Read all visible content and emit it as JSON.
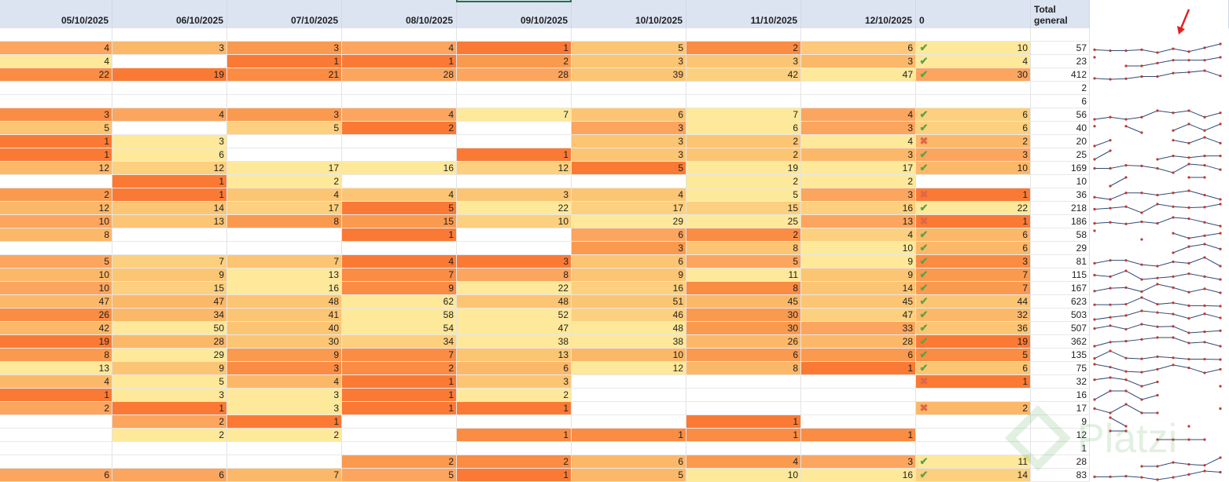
{
  "headers": [
    "05/10/2025",
    "06/10/2025",
    "07/10/2025",
    "08/10/2025",
    "09/10/2025",
    "10/10/2025",
    "11/10/2025",
    "12/10/2025",
    "0",
    "Total general"
  ],
  "rows": [
    [
      "",
      "",
      "",
      "",
      "",
      "",
      "",
      "",
      "",
      "",
      ""
    ],
    [
      "4",
      "3",
      "3",
      "4",
      "1",
      "5",
      "2",
      "6",
      "ok",
      "10",
      "57"
    ],
    [
      "4",
      "",
      "1",
      "1",
      "2",
      "3",
      "3",
      "3",
      "ok",
      "4",
      "23"
    ],
    [
      "22",
      "19",
      "21",
      "28",
      "28",
      "39",
      "42",
      "47",
      "ok",
      "30",
      "412"
    ],
    [
      "",
      "",
      "",
      "",
      "",
      "",
      "",
      "",
      "",
      "",
      "2"
    ],
    [
      "",
      "",
      "",
      "",
      "",
      "",
      "",
      "",
      "",
      "",
      "6"
    ],
    [
      "3",
      "4",
      "3",
      "4",
      "7",
      "6",
      "7",
      "4",
      "ok",
      "6",
      "56"
    ],
    [
      "5",
      "",
      "5",
      "2",
      "",
      "3",
      "6",
      "3",
      "ok",
      "6",
      "40"
    ],
    [
      "1",
      "3",
      "",
      "",
      "",
      "3",
      "2",
      "4",
      "bad",
      "2",
      "20"
    ],
    [
      "1",
      "6",
      "",
      "",
      "1",
      "3",
      "2",
      "3",
      "ok",
      "3",
      "25"
    ],
    [
      "12",
      "12",
      "17",
      "16",
      "12",
      "5",
      "19",
      "17",
      "ok",
      "10",
      "169"
    ],
    [
      "",
      "1",
      "2",
      "",
      "",
      "",
      "2",
      "2",
      "",
      "",
      "10"
    ],
    [
      "2",
      "1",
      "4",
      "4",
      "3",
      "4",
      "5",
      "3",
      "bad",
      "1",
      "36"
    ],
    [
      "12",
      "14",
      "17",
      "5",
      "22",
      "17",
      "15",
      "16",
      "ok",
      "22",
      "218"
    ],
    [
      "10",
      "13",
      "8",
      "15",
      "10",
      "29",
      "25",
      "13",
      "bad",
      "1",
      "186"
    ],
    [
      "8",
      "",
      "",
      "1",
      "",
      "6",
      "2",
      "4",
      "ok",
      "6",
      "58"
    ],
    [
      "",
      "",
      "",
      "",
      "",
      "3",
      "8",
      "10",
      "ok",
      "6",
      "29"
    ],
    [
      "5",
      "7",
      "7",
      "4",
      "3",
      "6",
      "5",
      "9",
      "ok",
      "3",
      "81"
    ],
    [
      "10",
      "9",
      "13",
      "7",
      "8",
      "9",
      "11",
      "9",
      "ok",
      "7",
      "115"
    ],
    [
      "10",
      "15",
      "16",
      "9",
      "22",
      "16",
      "8",
      "14",
      "ok",
      "7",
      "167"
    ],
    [
      "47",
      "47",
      "48",
      "62",
      "48",
      "51",
      "45",
      "45",
      "ok",
      "44",
      "623"
    ],
    [
      "26",
      "34",
      "41",
      "58",
      "52",
      "46",
      "30",
      "47",
      "ok",
      "32",
      "503"
    ],
    [
      "42",
      "50",
      "40",
      "54",
      "47",
      "48",
      "30",
      "33",
      "ok",
      "36",
      "507"
    ],
    [
      "19",
      "28",
      "30",
      "34",
      "38",
      "38",
      "26",
      "28",
      "ok",
      "19",
      "362"
    ],
    [
      "8",
      "29",
      "9",
      "7",
      "13",
      "10",
      "6",
      "6",
      "ok",
      "5",
      "135"
    ],
    [
      "13",
      "9",
      "3",
      "2",
      "6",
      "12",
      "8",
      "1",
      "ok",
      "6",
      "75"
    ],
    [
      "4",
      "5",
      "4",
      "1",
      "3",
      "",
      "",
      "",
      "bad",
      "1",
      "32"
    ],
    [
      "1",
      "3",
      "3",
      "1",
      "2",
      "",
      "",
      "",
      "",
      "",
      "16"
    ],
    [
      "2",
      "1",
      "3",
      "1",
      "1",
      "",
      "",
      "",
      "bad",
      "2",
      "17"
    ],
    [
      "",
      "2",
      "1",
      "",
      "",
      "",
      "1",
      "",
      "",
      "",
      "9"
    ],
    [
      "",
      "2",
      "2",
      "",
      "1",
      "1",
      "1",
      "1",
      "",
      "",
      "12"
    ],
    [
      "",
      "",
      "",
      "",
      "",
      "",
      "",
      "",
      "",
      "",
      "1"
    ],
    [
      "",
      "",
      "",
      "2",
      "2",
      "6",
      "4",
      "3",
      "ok",
      "11",
      "28"
    ],
    [
      "6",
      "6",
      "7",
      "5",
      "1",
      "5",
      "10",
      "16",
      "ok",
      "14",
      "83"
    ]
  ],
  "fills": [
    [
      "w",
      "w",
      "w",
      "w",
      "w",
      "w",
      "w",
      "w",
      "w"
    ],
    [
      "#fba55f",
      "#fcb869",
      "#fa9a4f",
      "#fba55f",
      "#fa7a35",
      "#fcc574",
      "#fa8c43",
      "#fdc879",
      "#fee89a"
    ],
    [
      "#fee89a",
      "#ffffff",
      "#fa7a35",
      "#fa7a35",
      "#fa9a4f",
      "#fcc574",
      "#fcc574",
      "#fcb869",
      "#fee89a"
    ],
    [
      "#fa8c43",
      "#fa7a35",
      "#fa8c43",
      "#fba55f",
      "#fba55f",
      "#fcc574",
      "#fcd07e",
      "#fee89a",
      "#fba55f"
    ],
    [
      "w",
      "w",
      "w",
      "w",
      "w",
      "w",
      "w",
      "w",
      "w"
    ],
    [
      "w",
      "w",
      "w",
      "w",
      "w",
      "w",
      "w",
      "w",
      "w"
    ],
    [
      "#fa8c43",
      "#fba55f",
      "#fa9a4f",
      "#fba55f",
      "#fee89a",
      "#fcc574",
      "#fee89a",
      "#fba55f",
      "#fcd07e"
    ],
    [
      "#fcc574",
      "#ffffff",
      "#fcd07e",
      "#fa7a35",
      "#ffffff",
      "#fba55f",
      "#fee89a",
      "#fba55f",
      "#fcd07e"
    ],
    [
      "#fa7a35",
      "#fee89a",
      "#ffffff",
      "#ffffff",
      "#ffffff",
      "#fcc574",
      "#fcc574",
      "#fee89a",
      "#fcb869"
    ],
    [
      "#fa7a35",
      "#fee89a",
      "#ffffff",
      "#ffffff",
      "#fa7a35",
      "#fcc574",
      "#fcc574",
      "#fcb869",
      "#fba55f"
    ],
    [
      "#fcb869",
      "#fcd07e",
      "#fee89a",
      "#fee89a",
      "#fcd07e",
      "#fa7a35",
      "#fee89a",
      "#fee89a",
      "#fcb869"
    ],
    [
      "#ffffff",
      "#fa7a35",
      "#fee89a",
      "#ffffff",
      "#ffffff",
      "#ffffff",
      "#fee89a",
      "#fee89a",
      "#ffffff"
    ],
    [
      "#fa9a4f",
      "#fa7a35",
      "#fcc574",
      "#fcc574",
      "#fcc574",
      "#fcc574",
      "#fee89a",
      "#fba55f",
      "#fa7a35"
    ],
    [
      "#fcb869",
      "#fcc574",
      "#fcd07e",
      "#fa7a35",
      "#fee89a",
      "#fcd07e",
      "#fcd07e",
      "#fcd07e",
      "#fee89a"
    ],
    [
      "#fba55f",
      "#fcc574",
      "#fa9a4f",
      "#fa9a4f",
      "#fcd07e",
      "#fee89a",
      "#fee89a",
      "#fba55f",
      "#fa7a35"
    ],
    [
      "#fcb869",
      "#ffffff",
      "#ffffff",
      "#fa7a35",
      "#ffffff",
      "#fba55f",
      "#fa8c43",
      "#fcd07e",
      "#fcb869"
    ],
    [
      "#ffffff",
      "#ffffff",
      "#ffffff",
      "#ffffff",
      "#ffffff",
      "#fa9a4f",
      "#fcc574",
      "#fee89a",
      "#fcb869"
    ],
    [
      "#fba55f",
      "#fcd07e",
      "#fcc574",
      "#fa7a35",
      "#fa7a35",
      "#fcc574",
      "#fba55f",
      "#fee89a",
      "#fa8c43"
    ],
    [
      "#fcb869",
      "#fcc574",
      "#fee89a",
      "#fa8c43",
      "#fba55f",
      "#fcc574",
      "#fee89a",
      "#fcc574",
      "#fa9a4f"
    ],
    [
      "#fba55f",
      "#fcd07e",
      "#fee89a",
      "#fa8c43",
      "#fee89a",
      "#fcd07e",
      "#fa8c43",
      "#fcc574",
      "#fa9a4f"
    ],
    [
      "#fcb869",
      "#fcb869",
      "#fcc574",
      "#fee89a",
      "#fcc574",
      "#fcc574",
      "#fcb869",
      "#fcc574",
      "#fcc574"
    ],
    [
      "#fa8c43",
      "#fcb869",
      "#fcc574",
      "#fee89a",
      "#fee89a",
      "#fcd07e",
      "#fa9a4f",
      "#fcd07e",
      "#fcb869"
    ],
    [
      "#fcb869",
      "#fee89a",
      "#fcc574",
      "#fee89a",
      "#fee89a",
      "#fee89a",
      "#fa9a4f",
      "#fba55f",
      "#fcc574"
    ],
    [
      "#fa7a35",
      "#fcb869",
      "#fcc574",
      "#fcd07e",
      "#fee89a",
      "#fee89a",
      "#fcb869",
      "#fcb869",
      "#fa7a35"
    ],
    [
      "#fa9a4f",
      "#fee89a",
      "#fa9a4f",
      "#fa8c43",
      "#fcc574",
      "#fcb869",
      "#fa9a4f",
      "#fa9a4f",
      "#fa8c43"
    ],
    [
      "#fee89a",
      "#fcc574",
      "#fa8c43",
      "#fa8c43",
      "#fcb869",
      "#fee89a",
      "#fcb869",
      "#fa7a35",
      "#fcc574"
    ],
    [
      "#fcb869",
      "#fee89a",
      "#fcb869",
      "#fa7a35",
      "#fcc574",
      "#ffffff",
      "#ffffff",
      "#ffffff",
      "#fa7a35"
    ],
    [
      "#fa7a35",
      "#fee89a",
      "#fee89a",
      "#fa7a35",
      "#fee89a",
      "#ffffff",
      "#ffffff",
      "#ffffff",
      "#ffffff"
    ],
    [
      "#fba55f",
      "#fa7a35",
      "#fee89a",
      "#fa7a35",
      "#fa7a35",
      "#ffffff",
      "#ffffff",
      "#ffffff",
      "#fcb869"
    ],
    [
      "#ffffff",
      "#fba55f",
      "#fa7a35",
      "#ffffff",
      "#ffffff",
      "#ffffff",
      "#fa7a35",
      "#ffffff",
      "#ffffff"
    ],
    [
      "#ffffff",
      "#fee89a",
      "#fee89a",
      "#ffffff",
      "#fa8c43",
      "#fa8c43",
      "#fa8c43",
      "#fa8c43",
      "#ffffff"
    ],
    [
      "w",
      "w",
      "w",
      "w",
      "w",
      "w",
      "w",
      "w",
      "w"
    ],
    [
      "#ffffff",
      "#ffffff",
      "#ffffff",
      "#fa9a4f",
      "#fa8c43",
      "#fcb869",
      "#fa9a4f",
      "#fba55f",
      "#fee89a"
    ],
    [
      "#fba55f",
      "#fba55f",
      "#fcb869",
      "#fba55f",
      "#fa7a35",
      "#fcb869",
      "#fee89a",
      "#fee89a",
      "#fcd07e"
    ]
  ],
  "icons": {
    "ok": "✔",
    "bad": "✖"
  },
  "sparkline_color": "#c0392b",
  "arrow_color": "#e02020",
  "watermark": "Platzi"
}
